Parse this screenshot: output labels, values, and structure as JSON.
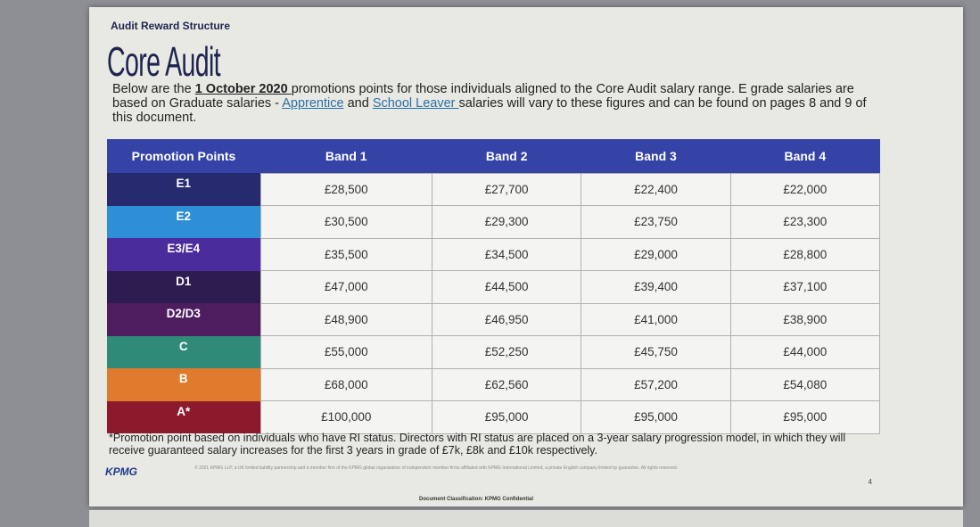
{
  "kicker": "Audit Reward Structure",
  "title": "Core Audit",
  "intro": {
    "p1": "Below are the ",
    "date": "1 October 2020 ",
    "p2": "promotions points for those individuals aligned to the Core Audit salary range. E grade salaries are based on Graduate salaries - ",
    "link1": "Apprentice",
    "p3": " and ",
    "link2": "School Leaver ",
    "p4": "salaries will vary to these figures and can be found on pages 8 and 9 of this document."
  },
  "table": {
    "headers": [
      "Promotion Points",
      "Band 1",
      "Band 2",
      "Band 3",
      "Band 4"
    ],
    "rows": [
      {
        "grade": "E1",
        "color": "#262a6e",
        "values": [
          "£28,500",
          "£27,700",
          "£22,400",
          "£22,000"
        ]
      },
      {
        "grade": "E2",
        "color": "#2e8ed6",
        "values": [
          "£30,500",
          "£29,300",
          "£23,750",
          "£23,300"
        ]
      },
      {
        "grade": "E3/E4",
        "color": "#4a2c9c",
        "values": [
          "£35,500",
          "£34,500",
          "£29,000",
          "£28,800"
        ]
      },
      {
        "grade": "D1",
        "color": "#2d1c50",
        "values": [
          "£47,000",
          "£44,500",
          "£39,400",
          "£37,100"
        ]
      },
      {
        "grade": "D2/D3",
        "color": "#4d1d60",
        "values": [
          "£48,900",
          "£46,950",
          "£41,000",
          "£38,900"
        ]
      },
      {
        "grade": "C",
        "color": "#2f8a78",
        "values": [
          "£55,000",
          "£52,250",
          "£45,750",
          "£44,000"
        ]
      },
      {
        "grade": "B",
        "color": "#e07a2c",
        "values": [
          "£68,000",
          "£62,560",
          "£57,200",
          "£54,080"
        ]
      },
      {
        "grade": "A*",
        "color": "#8c1a2c",
        "values": [
          "£100,000",
          "£95,000",
          "£95,000",
          "£95,000"
        ]
      }
    ]
  },
  "note": "*Promotion point based on individuals who have RI status. Directors with RI status are placed on a 3-year salary progression model, in which they will receive guaranteed salary increases for the first 3 years in grade of £7k, £8k and £10k respectively.",
  "footer": {
    "logo": "KPMG",
    "copyright": "© 2021 KPMG LLP, a UK limited liability partnership and a member firm of the KPMG global organisation of independent member firms affiliated with KPMG International Limited, a private English company limited by guarantee. All rights reserved.",
    "page": "4",
    "classification": "Document Classification: KPMG Confidential"
  }
}
